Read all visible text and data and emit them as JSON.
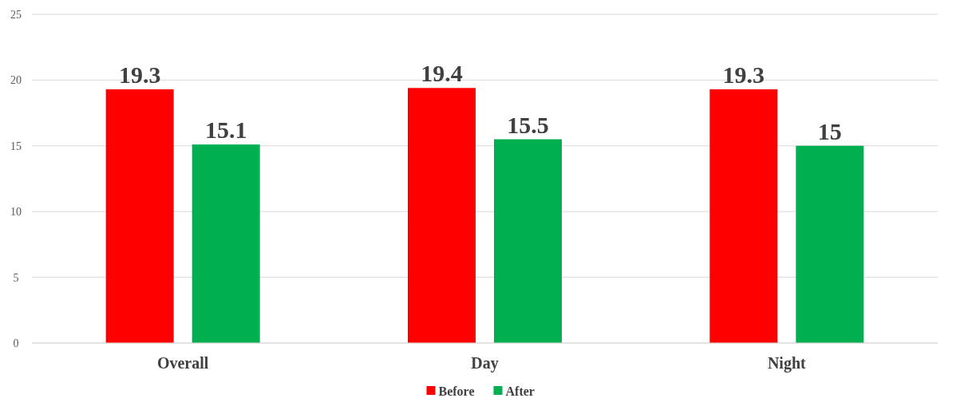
{
  "chart_data": {
    "type": "bar",
    "categories": [
      "Overall",
      "Day",
      "Night"
    ],
    "series": [
      {
        "name": "Before",
        "color": "#ff0000",
        "values": [
          19.3,
          19.4,
          19.3
        ]
      },
      {
        "name": "After",
        "color": "#00b050",
        "values": [
          15.1,
          15.5,
          15
        ]
      }
    ],
    "ylim": [
      0,
      25
    ],
    "yticks": [
      0,
      5,
      10,
      15,
      20,
      25
    ],
    "grid": "y",
    "legend": "bottom",
    "data_labels": true
  }
}
